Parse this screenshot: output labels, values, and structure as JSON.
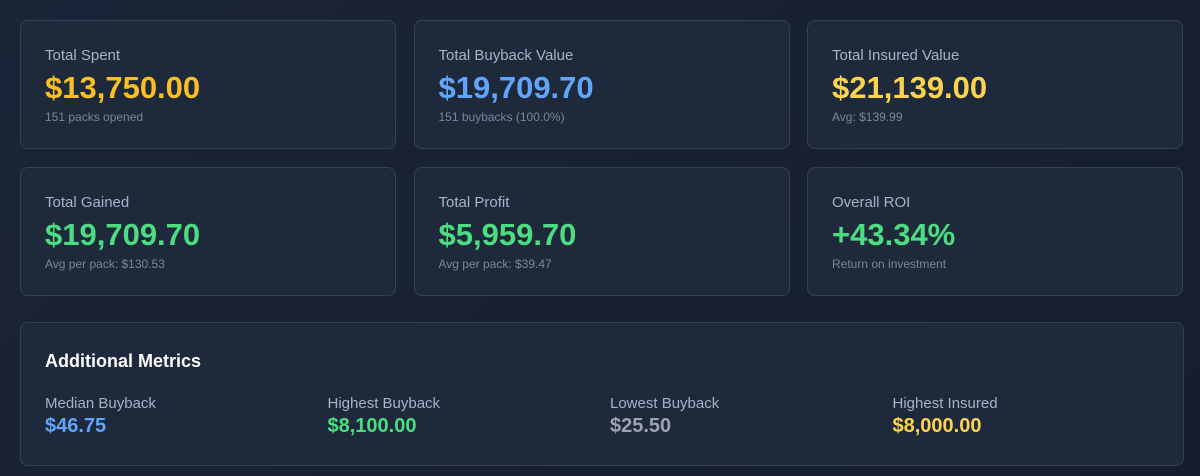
{
  "cards": [
    {
      "label": "Total Spent",
      "value": "$13,750.00",
      "sub": "151 packs opened"
    },
    {
      "label": "Total Buyback Value",
      "value": "$19,709.70",
      "sub": "151 buybacks (100.0%)"
    },
    {
      "label": "Total Insured Value",
      "value": "$21,139.00",
      "sub": "Avg: $139.99"
    },
    {
      "label": "Total Gained",
      "value": "$19,709.70",
      "sub": "Avg per pack: $130.53"
    },
    {
      "label": "Total Profit",
      "value": "$5,959.70",
      "sub": "Avg per pack: $39.47"
    },
    {
      "label": "Overall ROI",
      "value": "+43.34%",
      "sub": "Return on investment"
    }
  ],
  "additional": {
    "title": "Additional Metrics",
    "metrics": [
      {
        "label": "Median Buyback",
        "value": "$46.75"
      },
      {
        "label": "Highest Buyback",
        "value": "$8,100.00"
      },
      {
        "label": "Lowest Buyback",
        "value": "$25.50"
      },
      {
        "label": "Highest Insured",
        "value": "$8,000.00"
      }
    ]
  }
}
